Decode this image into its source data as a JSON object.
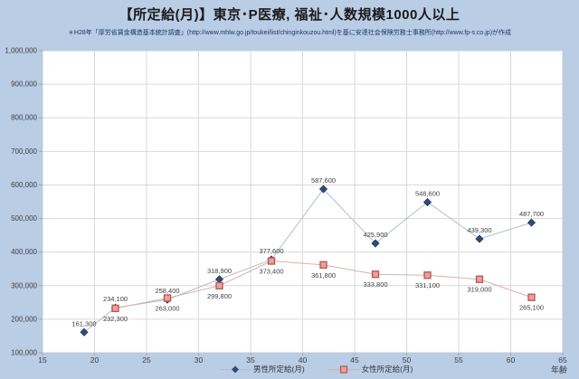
{
  "title": "【所定給(月)】東京･P医療, 福祉･人数規模1000人以上",
  "subtitle": "＊H28年「厚労省賃金構造基本統計調査」(http://www.mhlw.go.jp/toukei/list/chinginkouzou.html)を基に安達社会保険労務士事務所(http://www.fp-s.co.jp)が作成",
  "chart_data": {
    "type": "line",
    "x": [
      19,
      22,
      27,
      32,
      37,
      42,
      47,
      52,
      57,
      62
    ],
    "series": [
      {
        "name": "男性所定給(月)",
        "values": [
          161300,
          234100,
          258400,
          318900,
          377600,
          587600,
          425900,
          548600,
          439300,
          487700
        ],
        "marker": "diamond",
        "marker_fill": "#2e4c77",
        "marker_stroke": "#24375a",
        "line_color": "#b3bfce",
        "label_position": "above"
      },
      {
        "name": "女性所定給(月)",
        "values": [
          null,
          232300,
          263000,
          299800,
          373400,
          361800,
          333800,
          331100,
          319000,
          265100
        ],
        "marker": "square",
        "marker_fill": "#e8a09d",
        "marker_stroke": "#b85450",
        "line_color": "#d9b0ae",
        "label_position": "below"
      }
    ],
    "xlabel": "年齢",
    "ylabel": "",
    "xlim": [
      15,
      65
    ],
    "ylim": [
      100000,
      1000000
    ],
    "xticks": [
      15,
      20,
      25,
      30,
      35,
      40,
      45,
      50,
      55,
      60,
      65
    ],
    "yticks": [
      100000,
      200000,
      300000,
      400000,
      500000,
      600000,
      700000,
      800000,
      900000,
      1000000
    ],
    "grid": true,
    "legend_position": "bottom"
  },
  "colors": {
    "background": "#b9cde5",
    "plot_background": "#ffffff",
    "plot_border": "#c3cbd3",
    "gridline": "#dadada",
    "tick": "#9aa7b8",
    "axis_text": "#3f3f3f",
    "label_text": "#404040"
  }
}
